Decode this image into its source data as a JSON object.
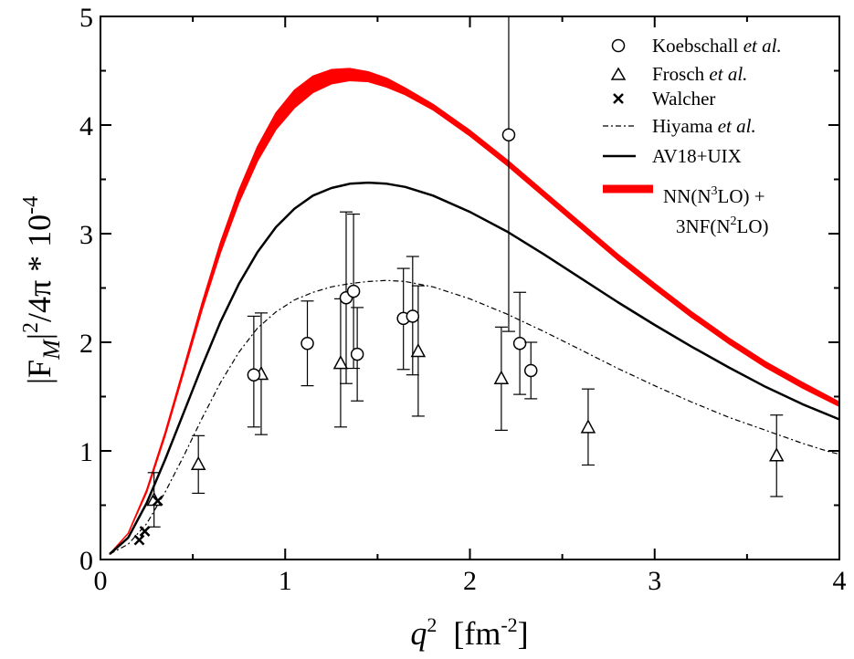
{
  "chart_data": {
    "type": "scatter",
    "xlabel": {
      "var": "q",
      "sup": "2",
      "unit_open": "  [fm",
      "unit_sup": "-2",
      "unit_close": "]"
    },
    "ylabel": {
      "pre": "|F",
      "sub": "M",
      "mid": "|",
      "sup": "2",
      "post": "/4π * 10",
      "exp": "-4"
    },
    "xlim": [
      0,
      4
    ],
    "ylim": [
      0,
      5
    ],
    "xticks": [
      "0",
      "1",
      "2",
      "3",
      "4"
    ],
    "yticks": [
      "0",
      "1",
      "2",
      "3",
      "4",
      "5"
    ],
    "legend_position": "top-right",
    "legend": {
      "koebschall": [
        "Koebschall ",
        "et al."
      ],
      "frosch": [
        "Frosch ",
        "et al."
      ],
      "walcher": [
        "Walcher"
      ],
      "hiyama": [
        "Hiyama ",
        "et al."
      ],
      "av18": [
        "AV18+UIX"
      ],
      "chiral_line1": [
        "NN(N",
        "3",
        "LO) +"
      ],
      "chiral_line2": [
        "3NF(N",
        "2",
        "LO)"
      ]
    },
    "colors": {
      "chiral_band": "#ff0000",
      "data": "#000000"
    },
    "series": [
      {
        "name": "Koebschall et al.",
        "marker": "circle",
        "points": [
          {
            "x": 0.83,
            "y": 1.7,
            "lo": 1.22,
            "hi": 2.24
          },
          {
            "x": 1.12,
            "y": 1.99,
            "lo": 1.6,
            "hi": 2.38
          },
          {
            "x": 1.33,
            "y": 2.41,
            "lo": 1.62,
            "hi": 3.2
          },
          {
            "x": 1.37,
            "y": 2.47,
            "lo": 1.76,
            "hi": 3.18
          },
          {
            "x": 1.39,
            "y": 1.89,
            "lo": 1.46,
            "hi": 2.32
          },
          {
            "x": 1.64,
            "y": 2.22,
            "lo": 1.75,
            "hi": 2.68
          },
          {
            "x": 1.69,
            "y": 2.24,
            "lo": 1.7,
            "hi": 2.79
          },
          {
            "x": 2.21,
            "y": 3.91,
            "lo": 2.1,
            "hi": 5.0
          },
          {
            "x": 2.27,
            "y": 1.99,
            "lo": 1.52,
            "hi": 2.46
          },
          {
            "x": 2.33,
            "y": 1.74,
            "lo": 1.48,
            "hi": 2.0
          }
        ]
      },
      {
        "name": "Frosch et al.",
        "marker": "triangle",
        "points": [
          {
            "x": 0.29,
            "y": 0.55,
            "lo": 0.3,
            "hi": 0.8
          },
          {
            "x": 0.53,
            "y": 0.88,
            "lo": 0.61,
            "hi": 1.14
          },
          {
            "x": 0.87,
            "y": 1.71,
            "lo": 1.15,
            "hi": 2.27
          },
          {
            "x": 1.3,
            "y": 1.81,
            "lo": 1.22,
            "hi": 2.4
          },
          {
            "x": 1.72,
            "y": 1.92,
            "lo": 1.32,
            "hi": 2.52
          },
          {
            "x": 2.17,
            "y": 1.67,
            "lo": 1.19,
            "hi": 2.14
          },
          {
            "x": 2.64,
            "y": 1.22,
            "lo": 0.87,
            "hi": 1.57
          },
          {
            "x": 3.66,
            "y": 0.96,
            "lo": 0.58,
            "hi": 1.33
          }
        ]
      },
      {
        "name": "Walcher",
        "marker": "x",
        "points": [
          {
            "x": 0.21,
            "y": 0.18
          },
          {
            "x": 0.24,
            "y": 0.26
          },
          {
            "x": 0.31,
            "y": 0.54
          }
        ]
      },
      {
        "name": "Hiyama et al.",
        "style": "dash-dot",
        "x": [
          0.05,
          0.15,
          0.25,
          0.35,
          0.45,
          0.55,
          0.65,
          0.75,
          0.85,
          0.95,
          1.05,
          1.15,
          1.25,
          1.35,
          1.45,
          1.55,
          1.65,
          1.8,
          2.0,
          2.2,
          2.4,
          2.6,
          2.8,
          3.0,
          3.2,
          3.4,
          3.6,
          3.8,
          3.95,
          4.0
        ],
        "y": [
          0.05,
          0.14,
          0.33,
          0.62,
          0.95,
          1.3,
          1.63,
          1.91,
          2.13,
          2.28,
          2.39,
          2.46,
          2.51,
          2.54,
          2.56,
          2.57,
          2.56,
          2.51,
          2.4,
          2.26,
          2.1,
          1.93,
          1.76,
          1.6,
          1.45,
          1.31,
          1.19,
          1.07,
          0.99,
          0.97
        ]
      },
      {
        "name": "AV18+UIX",
        "style": "solid",
        "x": [
          0.05,
          0.15,
          0.25,
          0.35,
          0.45,
          0.55,
          0.65,
          0.75,
          0.85,
          0.95,
          1.05,
          1.15,
          1.25,
          1.35,
          1.45,
          1.55,
          1.65,
          1.8,
          2.0,
          2.2,
          2.4,
          2.6,
          2.8,
          3.0,
          3.2,
          3.4,
          3.6,
          3.8,
          4.0
        ],
        "y": [
          0.05,
          0.2,
          0.52,
          0.92,
          1.35,
          1.78,
          2.19,
          2.54,
          2.83,
          3.06,
          3.23,
          3.35,
          3.42,
          3.46,
          3.47,
          3.46,
          3.43,
          3.35,
          3.2,
          3.02,
          2.81,
          2.59,
          2.37,
          2.16,
          1.96,
          1.77,
          1.59,
          1.43,
          1.29
        ]
      },
      {
        "name": "NN(N3LO) + 3NF(N2LO)",
        "style": "band",
        "x": [
          0.05,
          0.15,
          0.25,
          0.35,
          0.45,
          0.55,
          0.65,
          0.75,
          0.85,
          0.95,
          1.05,
          1.15,
          1.25,
          1.35,
          1.45,
          1.55,
          1.65,
          1.8,
          2.0,
          2.2,
          2.4,
          2.6,
          2.8,
          3.0,
          3.2,
          3.4,
          3.6,
          3.8,
          4.0
        ],
        "y_lo": [
          0.05,
          0.24,
          0.62,
          1.14,
          1.72,
          2.3,
          2.83,
          3.29,
          3.67,
          3.96,
          4.16,
          4.3,
          4.38,
          4.41,
          4.4,
          4.35,
          4.28,
          4.14,
          3.9,
          3.63,
          3.34,
          3.05,
          2.76,
          2.49,
          2.23,
          1.99,
          1.77,
          1.58,
          1.41
        ],
        "y_hi": [
          0.05,
          0.24,
          0.64,
          1.17,
          1.76,
          2.36,
          2.92,
          3.4,
          3.8,
          4.11,
          4.32,
          4.45,
          4.51,
          4.52,
          4.49,
          4.43,
          4.34,
          4.19,
          3.95,
          3.68,
          3.39,
          3.1,
          2.81,
          2.54,
          2.28,
          2.04,
          1.82,
          1.63,
          1.45
        ]
      }
    ]
  }
}
